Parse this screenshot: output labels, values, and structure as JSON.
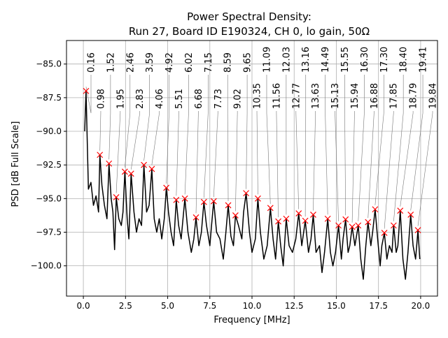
{
  "chart_data": {
    "type": "line",
    "title": "Power Spectral Density:",
    "subtitle": "Run 27, Board ID E190324, CH 0, lo gain, 50Ω",
    "xlabel": "Frequency [MHz]",
    "ylabel": "PSD [dB Full Scale]",
    "xlim": [
      -1,
      21
    ],
    "ylim": [
      -102.25,
      -83.25
    ],
    "xticks": [
      0.0,
      2.5,
      5.0,
      7.5,
      10.0,
      12.5,
      15.0,
      17.5,
      20.0
    ],
    "xtick_labels": [
      "0.0",
      "2.5",
      "5.0",
      "7.5",
      "10.0",
      "12.5",
      "15.0",
      "17.5",
      "20.0"
    ],
    "yticks": [
      -85.0,
      -87.5,
      -90.0,
      -92.5,
      -95.0,
      -97.5,
      -100.0
    ],
    "ytick_labels": [
      "−85.0",
      "−87.5",
      "−90.0",
      "−92.5",
      "−95.0",
      "−97.5",
      "−100.0"
    ],
    "grid": true,
    "line_color": "#000000",
    "marker_color": "#ff0000",
    "series": [
      {
        "points": [
          [
            0.08,
            -90
          ],
          [
            0.16,
            -87.0
          ],
          [
            0.3,
            -94.3
          ],
          [
            0.45,
            -93.8
          ],
          [
            0.6,
            -95.5
          ],
          [
            0.75,
            -94.8
          ],
          [
            0.9,
            -96
          ],
          [
            0.98,
            -91.75
          ],
          [
            1.1,
            -94
          ],
          [
            1.25,
            -95.5
          ],
          [
            1.4,
            -96.5
          ],
          [
            1.52,
            -92.4
          ],
          [
            1.65,
            -95
          ],
          [
            1.75,
            -96
          ],
          [
            1.85,
            -98.8
          ],
          [
            1.95,
            -94.9
          ],
          [
            2.1,
            -96.5
          ],
          [
            2.25,
            -97
          ],
          [
            2.35,
            -96
          ],
          [
            2.46,
            -93.0
          ],
          [
            2.6,
            -96.5
          ],
          [
            2.7,
            -98
          ],
          [
            2.83,
            -93.15
          ],
          [
            3.0,
            -96
          ],
          [
            3.15,
            -97.5
          ],
          [
            3.3,
            -96.5
          ],
          [
            3.45,
            -97
          ],
          [
            3.59,
            -92.5
          ],
          [
            3.75,
            -96
          ],
          [
            3.9,
            -95.5
          ],
          [
            4.06,
            -92.8
          ],
          [
            4.2,
            -96.5
          ],
          [
            4.35,
            -97.5
          ],
          [
            4.5,
            -96.5
          ],
          [
            4.65,
            -98
          ],
          [
            4.8,
            -96.5
          ],
          [
            4.92,
            -94.2
          ],
          [
            5.05,
            -96
          ],
          [
            5.2,
            -97.5
          ],
          [
            5.35,
            -98.5
          ],
          [
            5.51,
            -95.1
          ],
          [
            5.65,
            -97
          ],
          [
            5.8,
            -98
          ],
          [
            6.02,
            -95.0
          ],
          [
            6.2,
            -97.5
          ],
          [
            6.4,
            -99
          ],
          [
            6.55,
            -98
          ],
          [
            6.68,
            -96.4
          ],
          [
            6.85,
            -98.5
          ],
          [
            7.0,
            -97.5
          ],
          [
            7.15,
            -95.25
          ],
          [
            7.3,
            -97
          ],
          [
            7.5,
            -98.5
          ],
          [
            7.6,
            -97
          ],
          [
            7.73,
            -95.2
          ],
          [
            7.9,
            -97.5
          ],
          [
            8.1,
            -98
          ],
          [
            8.3,
            -99.5
          ],
          [
            8.45,
            -97.5
          ],
          [
            8.59,
            -95.5
          ],
          [
            8.75,
            -97.8
          ],
          [
            8.9,
            -98.5
          ],
          [
            9.02,
            -96.25
          ],
          [
            9.2,
            -97
          ],
          [
            9.4,
            -98
          ],
          [
            9.5,
            -96
          ],
          [
            9.65,
            -94.6
          ],
          [
            9.85,
            -97.5
          ],
          [
            10.0,
            -99
          ],
          [
            10.2,
            -98
          ],
          [
            10.35,
            -95.0
          ],
          [
            10.5,
            -97.5
          ],
          [
            10.7,
            -99.5
          ],
          [
            10.9,
            -98.5
          ],
          [
            11.09,
            -95.7
          ],
          [
            11.25,
            -98
          ],
          [
            11.4,
            -99.5
          ],
          [
            11.56,
            -96.7
          ],
          [
            11.7,
            -98.5
          ],
          [
            11.85,
            -100
          ],
          [
            12.03,
            -96.5
          ],
          [
            12.2,
            -98.5
          ],
          [
            12.4,
            -99
          ],
          [
            12.6,
            -98
          ],
          [
            12.77,
            -96.1
          ],
          [
            12.95,
            -98.5
          ],
          [
            13.16,
            -96.65
          ],
          [
            13.35,
            -99
          ],
          [
            13.5,
            -98
          ],
          [
            13.63,
            -96.2
          ],
          [
            13.8,
            -99
          ],
          [
            14.0,
            -98.5
          ],
          [
            14.15,
            -100.5
          ],
          [
            14.3,
            -99
          ],
          [
            14.49,
            -96.5
          ],
          [
            14.65,
            -99
          ],
          [
            14.8,
            -100
          ],
          [
            14.95,
            -99
          ],
          [
            15.13,
            -97.0
          ],
          [
            15.3,
            -99.5
          ],
          [
            15.4,
            -98
          ],
          [
            15.55,
            -96.55
          ],
          [
            15.7,
            -99
          ],
          [
            15.8,
            -98.5
          ],
          [
            15.94,
            -97.1
          ],
          [
            16.1,
            -98.5
          ],
          [
            16.3,
            -97.0
          ],
          [
            16.45,
            -99.5
          ],
          [
            16.6,
            -101
          ],
          [
            16.75,
            -98.5
          ],
          [
            16.88,
            -96.75
          ],
          [
            17.05,
            -98.5
          ],
          [
            17.15,
            -97.5
          ],
          [
            17.3,
            -95.8
          ],
          [
            17.45,
            -98
          ],
          [
            17.6,
            -100
          ],
          [
            17.7,
            -98.5
          ],
          [
            17.85,
            -97.55
          ],
          [
            18.0,
            -99.5
          ],
          [
            18.15,
            -98.5
          ],
          [
            18.3,
            -99
          ],
          [
            18.4,
            -97.0
          ],
          [
            18.55,
            -99
          ],
          [
            18.65,
            -98.5
          ],
          [
            18.79,
            -95.9
          ],
          [
            18.95,
            -99.5
          ],
          [
            19.1,
            -101
          ],
          [
            19.25,
            -99
          ],
          [
            19.41,
            -96.2
          ],
          [
            19.55,
            -98.5
          ],
          [
            19.7,
            -99.5
          ],
          [
            19.84,
            -97.35
          ],
          [
            19.95,
            -99.5
          ]
        ]
      }
    ],
    "peaks": [
      {
        "x": 0.16,
        "y": -87.0,
        "label": "0.16"
      },
      {
        "x": 0.98,
        "y": -91.75,
        "label": "0.98"
      },
      {
        "x": 1.52,
        "y": -92.4,
        "label": "1.52"
      },
      {
        "x": 1.95,
        "y": -94.9,
        "label": "1.95"
      },
      {
        "x": 2.46,
        "y": -93.0,
        "label": "2.46"
      },
      {
        "x": 2.83,
        "y": -93.15,
        "label": "2.83"
      },
      {
        "x": 3.59,
        "y": -92.5,
        "label": "3.59"
      },
      {
        "x": 4.06,
        "y": -92.8,
        "label": "4.06"
      },
      {
        "x": 4.92,
        "y": -94.2,
        "label": "4.92"
      },
      {
        "x": 5.51,
        "y": -95.1,
        "label": "5.51"
      },
      {
        "x": 6.02,
        "y": -95.0,
        "label": "6.02"
      },
      {
        "x": 6.68,
        "y": -96.4,
        "label": "6.68"
      },
      {
        "x": 7.15,
        "y": -95.25,
        "label": "7.15"
      },
      {
        "x": 7.73,
        "y": -95.2,
        "label": "7.73"
      },
      {
        "x": 8.59,
        "y": -95.5,
        "label": "8.59"
      },
      {
        "x": 9.02,
        "y": -96.25,
        "label": "9.02"
      },
      {
        "x": 9.65,
        "y": -94.6,
        "label": "9.65"
      },
      {
        "x": 10.35,
        "y": -95.0,
        "label": "10.35"
      },
      {
        "x": 11.09,
        "y": -95.7,
        "label": "11.09"
      },
      {
        "x": 11.56,
        "y": -96.7,
        "label": "11.56"
      },
      {
        "x": 12.03,
        "y": -96.5,
        "label": "12.03"
      },
      {
        "x": 12.77,
        "y": -96.1,
        "label": "12.77"
      },
      {
        "x": 13.16,
        "y": -96.65,
        "label": "13.16"
      },
      {
        "x": 13.63,
        "y": -96.2,
        "label": "13.63"
      },
      {
        "x": 14.49,
        "y": -96.5,
        "label": "14.49"
      },
      {
        "x": 15.13,
        "y": -97.0,
        "label": "15.13"
      },
      {
        "x": 15.55,
        "y": -96.55,
        "label": "15.55"
      },
      {
        "x": 15.94,
        "y": -97.1,
        "label": "15.94"
      },
      {
        "x": 16.3,
        "y": -97.0,
        "label": "16.30"
      },
      {
        "x": 16.88,
        "y": -96.75,
        "label": "16.88"
      },
      {
        "x": 17.3,
        "y": -95.8,
        "label": "17.30"
      },
      {
        "x": 17.85,
        "y": -97.55,
        "label": "17.85"
      },
      {
        "x": 18.4,
        "y": -97.0,
        "label": "18.40"
      },
      {
        "x": 18.79,
        "y": -95.9,
        "label": "18.79"
      },
      {
        "x": 19.41,
        "y": -96.2,
        "label": "19.41"
      },
      {
        "x": 19.84,
        "y": -97.35,
        "label": "19.84"
      }
    ]
  }
}
